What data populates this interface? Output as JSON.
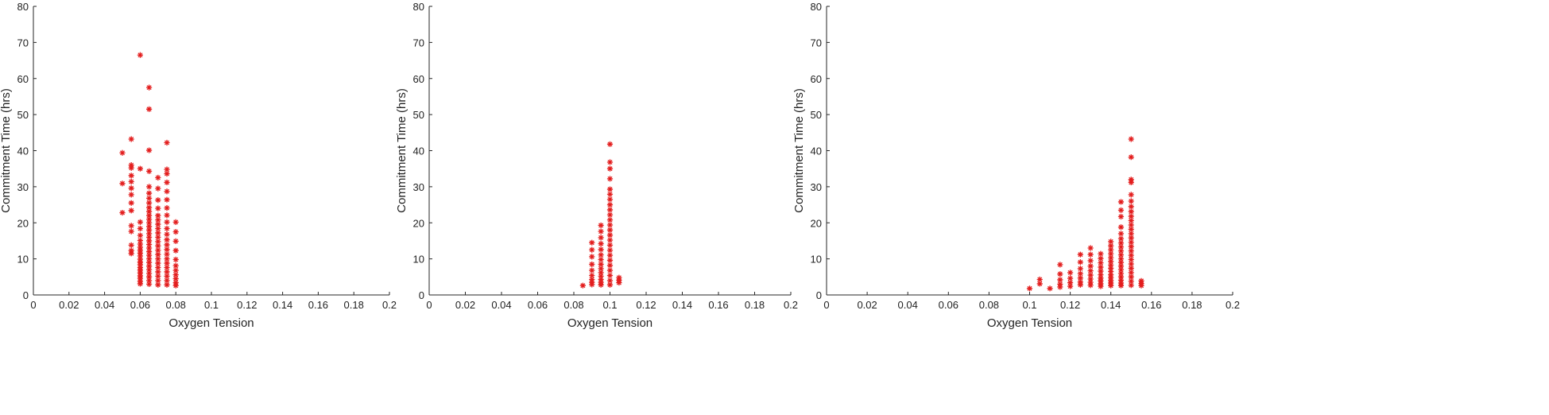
{
  "chart_data": [
    {
      "type": "scatter",
      "marker": "asterisk",
      "color": "#e31e1e",
      "xlabel": "Oxygen Tension",
      "ylabel": "Commitment Time (hrs)",
      "xlim": [
        0,
        0.2
      ],
      "ylim": [
        0,
        80
      ],
      "xticks": [
        "0",
        "0.02",
        "0.04",
        "0.06",
        "0.08",
        "0.1",
        "0.12",
        "0.14",
        "0.16",
        "0.18",
        "0.2"
      ],
      "yticks": [
        "0",
        "10",
        "20",
        "30",
        "40",
        "50",
        "60",
        "70",
        "80"
      ],
      "grid": false,
      "columns": [
        {
          "x": 0.05,
          "ys": [
            39.4,
            30.9,
            22.8
          ]
        },
        {
          "x": 0.055,
          "ys": [
            43.2,
            36,
            35.2,
            33.1,
            31.4,
            29.6,
            27.8,
            25.5,
            23.4,
            19.2,
            17.6,
            13.8,
            12.3,
            11.5
          ]
        },
        {
          "x": 0.06,
          "ys": [
            66.5,
            35,
            20.2,
            18.4,
            16.5,
            15.1,
            14.1,
            13.2,
            12.4,
            11.6,
            10.8,
            9.9,
            9.1,
            8.4,
            7.6,
            6.9,
            6.1,
            5.3,
            4.6,
            3.8,
            3.1
          ]
        },
        {
          "x": 0.065,
          "ys": [
            57.5,
            51.5,
            40.1,
            34.3,
            30,
            28.2,
            26.8,
            25.5,
            24.2,
            23.1,
            22,
            21,
            20,
            19,
            18,
            17,
            16,
            15,
            14,
            13,
            12,
            11,
            10,
            9,
            8,
            7,
            6,
            5,
            4,
            3
          ]
        },
        {
          "x": 0.07,
          "ys": [
            32.5,
            29.5,
            26.3,
            24,
            22,
            20.8,
            19.6,
            18.4,
            17.2,
            16,
            14.8,
            13.6,
            12.4,
            11.2,
            10,
            8.8,
            7.6,
            6.4,
            5.2,
            4,
            2.8
          ]
        },
        {
          "x": 0.075,
          "ys": [
            42.2,
            34.8,
            33.6,
            31.2,
            28.7,
            26.4,
            24.1,
            22.1,
            20.2,
            18.4,
            16.8,
            15.3,
            13.9,
            12.6,
            11.3,
            10,
            8.8,
            7.6,
            6.4,
            5.2,
            4,
            2.8
          ]
        },
        {
          "x": 0.08,
          "ys": [
            20.2,
            17.5,
            14.9,
            12.3,
            9.8,
            8.1,
            6.8,
            5.6,
            4.5,
            3.4,
            2.6
          ]
        }
      ]
    },
    {
      "type": "scatter",
      "marker": "asterisk",
      "color": "#e31e1e",
      "xlabel": "Oxygen Tension",
      "ylabel": "Commitment Time (hrs)",
      "xlim": [
        0,
        0.2
      ],
      "ylim": [
        0,
        80
      ],
      "xticks": [
        "0",
        "0.02",
        "0.04",
        "0.06",
        "0.08",
        "0.1",
        "0.12",
        "0.14",
        "0.16",
        "0.18",
        "0.2"
      ],
      "yticks": [
        "0",
        "10",
        "20",
        "30",
        "40",
        "50",
        "60",
        "70",
        "80"
      ],
      "grid": false,
      "columns": [
        {
          "x": 0.085,
          "ys": [
            2.6
          ]
        },
        {
          "x": 0.09,
          "ys": [
            14.5,
            12.5,
            10.6,
            8.5,
            6.8,
            5.4,
            4.3,
            3.5,
            2.9
          ]
        },
        {
          "x": 0.095,
          "ys": [
            19.3,
            17.6,
            15.9,
            14.2,
            12.6,
            11.1,
            9.8,
            8.5,
            7.3,
            6.2,
            5.2,
            4.3,
            3.5,
            2.8
          ]
        },
        {
          "x": 0.1,
          "ys": [
            41.8,
            36.8,
            35,
            32.2,
            29.3,
            27.9,
            26.5,
            25,
            23.6,
            22.2,
            20.8,
            19.4,
            18,
            16.6,
            15.2,
            13.8,
            12.4,
            11,
            9.6,
            8.2,
            6.8,
            5.4,
            4,
            2.8
          ]
        },
        {
          "x": 0.105,
          "ys": [
            4.8,
            4.1,
            3.4
          ]
        }
      ]
    },
    {
      "type": "scatter",
      "marker": "asterisk",
      "color": "#e31e1e",
      "xlabel": "Oxygen Tension",
      "ylabel": "Commitment Time (hrs)",
      "xlim": [
        0,
        0.2
      ],
      "ylim": [
        0,
        80
      ],
      "xticks": [
        "0",
        "0.02",
        "0.04",
        "0.06",
        "0.08",
        "0.1",
        "0.12",
        "0.14",
        "0.16",
        "0.18",
        "0.2"
      ],
      "yticks": [
        "0",
        "10",
        "20",
        "30",
        "40",
        "50",
        "60",
        "70",
        "80"
      ],
      "grid": false,
      "columns": [
        {
          "x": 0.1,
          "ys": [
            1.8
          ]
        },
        {
          "x": 0.105,
          "ys": [
            4.3,
            3.1
          ]
        },
        {
          "x": 0.11,
          "ys": [
            1.8
          ]
        },
        {
          "x": 0.115,
          "ys": [
            8.4,
            5.8,
            4.2,
            3,
            2.2
          ]
        },
        {
          "x": 0.12,
          "ys": [
            6.2,
            4.6,
            3.4,
            2.4
          ]
        },
        {
          "x": 0.125,
          "ys": [
            11.2,
            9.1,
            7.3,
            5.9,
            4.7,
            3.6,
            2.8
          ]
        },
        {
          "x": 0.13,
          "ys": [
            13,
            11.2,
            9.5,
            8,
            6.7,
            5.5,
            4.4,
            3.5,
            2.7
          ]
        },
        {
          "x": 0.135,
          "ys": [
            11.4,
            10.1,
            8.9,
            7.7,
            6.6,
            5.6,
            4.7,
            3.9,
            3.1,
            2.4
          ]
        },
        {
          "x": 0.14,
          "ys": [
            14.8,
            13.6,
            12.5,
            11.4,
            10.3,
            9.3,
            8.3,
            7.4,
            6.5,
            5.6,
            4.8,
            4,
            3.3,
            2.6
          ]
        },
        {
          "x": 0.145,
          "ys": [
            25.8,
            23.5,
            21.7,
            18.8,
            17,
            15.6,
            14.4,
            13.3,
            12.2,
            11.1,
            10,
            9,
            8,
            7,
            6,
            5,
            4.1,
            3.3,
            2.6
          ]
        },
        {
          "x": 0.15,
          "ys": [
            43.2,
            38.2,
            32,
            31.2,
            27.8,
            26,
            24.5,
            23.1,
            21.8,
            20.6,
            19.4,
            18.2,
            17,
            15.8,
            14.6,
            13.4,
            12.2,
            11,
            9.8,
            8.6,
            7.4,
            6.2,
            5,
            3.8,
            2.7
          ]
        },
        {
          "x": 0.155,
          "ys": [
            3.9,
            3.2,
            2.6
          ]
        }
      ]
    }
  ]
}
